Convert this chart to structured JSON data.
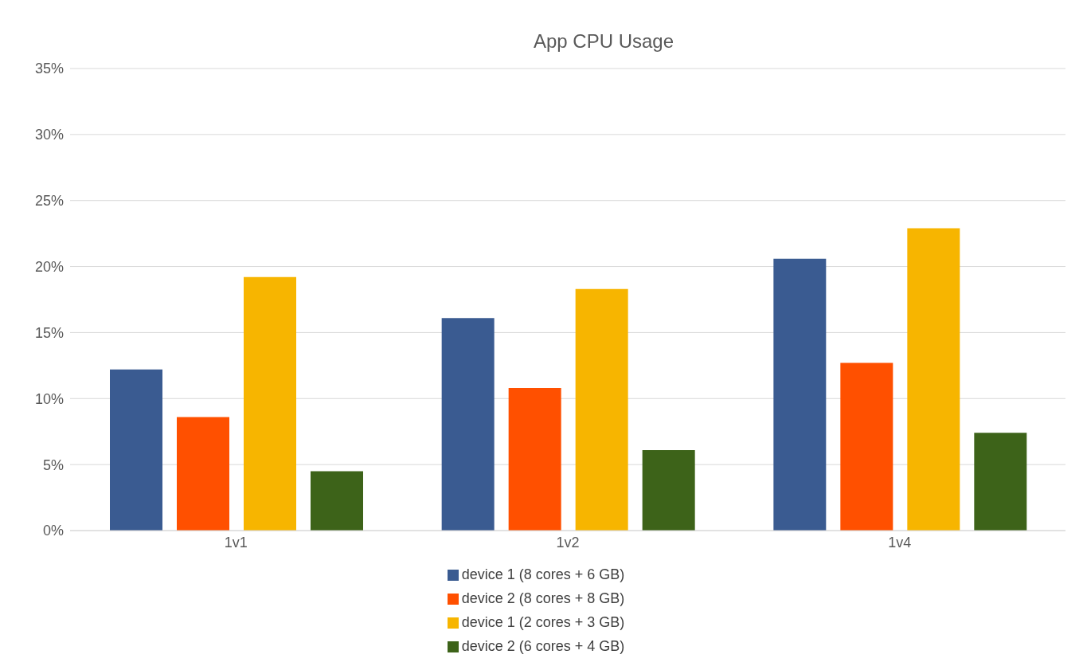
{
  "chart_data": {
    "type": "bar",
    "title": "App CPU Usage",
    "categories": [
      "1v1",
      "1v2",
      "1v4"
    ],
    "series": [
      {
        "name": "device 1 (8 cores + 6 GB)",
        "color": "#3a5b91",
        "values": [
          12.2,
          16.1,
          20.6
        ]
      },
      {
        "name": "device 2 (8 cores + 8 GB)",
        "color": "#ff5000",
        "values": [
          8.6,
          10.8,
          12.7
        ]
      },
      {
        "name": "device 1 (2 cores + 3 GB)",
        "color": "#f7b500",
        "values": [
          19.2,
          18.3,
          22.9
        ]
      },
      {
        "name": "device 2 (6 cores + 4 GB)",
        "color": "#3d6319",
        "values": [
          4.5,
          6.1,
          7.4
        ]
      }
    ],
    "ylim": [
      0,
      35
    ],
    "yticks": [
      {
        "value": 0,
        "label": "0%"
      },
      {
        "value": 5,
        "label": "5%"
      },
      {
        "value": 10,
        "label": "10%"
      },
      {
        "value": 15,
        "label": "15%"
      },
      {
        "value": 20,
        "label": "20%"
      },
      {
        "value": 25,
        "label": "25%"
      },
      {
        "value": 30,
        "label": "30%"
      },
      {
        "value": 35,
        "label": "35%"
      }
    ],
    "grid": "y",
    "legend": "bottom"
  }
}
